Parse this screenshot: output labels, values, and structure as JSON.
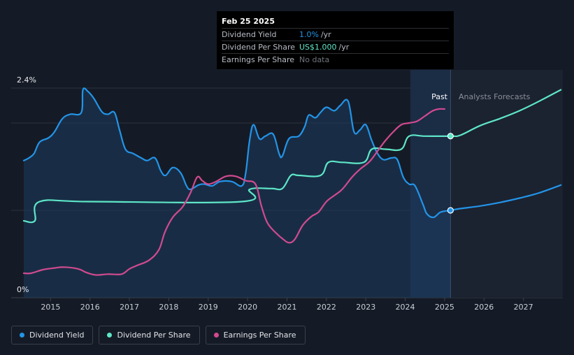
{
  "tooltip": {
    "date": "Feb 25 2025",
    "rows": [
      {
        "label": "Dividend Yield",
        "value": "1.0%",
        "unit": "/yr",
        "color": "#2394e8"
      },
      {
        "label": "Dividend Per Share",
        "value": "US$1.000",
        "unit": "/yr",
        "color": "#5ee6c8"
      },
      {
        "label": "Earnings Per Share",
        "value": "No data",
        "unit": "",
        "color": "#6f747c"
      }
    ]
  },
  "legend": [
    {
      "label": "Dividend Yield",
      "color": "#2394e8"
    },
    {
      "label": "Dividend Per Share",
      "color": "#5ee6c8"
    },
    {
      "label": "Earnings Per Share",
      "color": "#d14a8f"
    }
  ],
  "chart_data": {
    "type": "line",
    "y_top_label": "2.4%",
    "y_bottom_label": "0%",
    "ylim": [
      0,
      2.4
    ],
    "xlim": [
      2014.0,
      2028.0
    ],
    "x_ticks": [
      "2015",
      "2016",
      "2017",
      "2018",
      "2019",
      "2020",
      "2021",
      "2022",
      "2023",
      "2024",
      "2025",
      "2026",
      "2027"
    ],
    "past_label": "Past",
    "forecast_label": "Analysts Forecasts",
    "past_end": 2025.15,
    "shade_start": 2024.13,
    "series": [
      {
        "name": "Dividend Yield",
        "color": "#2394e8",
        "points": [
          [
            2014.32,
            1.57
          ],
          [
            2014.45,
            1.6
          ],
          [
            2014.58,
            1.65
          ],
          [
            2014.72,
            1.78
          ],
          [
            2014.95,
            1.83
          ],
          [
            2015.1,
            1.9
          ],
          [
            2015.3,
            2.05
          ],
          [
            2015.5,
            2.1
          ],
          [
            2015.78,
            2.12
          ],
          [
            2015.82,
            2.38
          ],
          [
            2015.95,
            2.36
          ],
          [
            2016.1,
            2.28
          ],
          [
            2016.3,
            2.13
          ],
          [
            2016.45,
            2.1
          ],
          [
            2016.62,
            2.12
          ],
          [
            2016.75,
            1.92
          ],
          [
            2016.9,
            1.7
          ],
          [
            2017.1,
            1.65
          ],
          [
            2017.3,
            1.6
          ],
          [
            2017.45,
            1.57
          ],
          [
            2017.65,
            1.6
          ],
          [
            2017.8,
            1.45
          ],
          [
            2017.92,
            1.4
          ],
          [
            2018.1,
            1.49
          ],
          [
            2018.3,
            1.43
          ],
          [
            2018.45,
            1.28
          ],
          [
            2018.55,
            1.24
          ],
          [
            2018.75,
            1.29
          ],
          [
            2018.9,
            1.3
          ],
          [
            2019.1,
            1.28
          ],
          [
            2019.3,
            1.33
          ],
          [
            2019.6,
            1.33
          ],
          [
            2019.85,
            1.28
          ],
          [
            2019.95,
            1.42
          ],
          [
            2020.05,
            1.8
          ],
          [
            2020.15,
            1.98
          ],
          [
            2020.3,
            1.82
          ],
          [
            2020.45,
            1.85
          ],
          [
            2020.65,
            1.87
          ],
          [
            2020.8,
            1.65
          ],
          [
            2020.88,
            1.62
          ],
          [
            2021.05,
            1.82
          ],
          [
            2021.3,
            1.85
          ],
          [
            2021.45,
            1.96
          ],
          [
            2021.55,
            2.09
          ],
          [
            2021.72,
            2.06
          ],
          [
            2021.85,
            2.12
          ],
          [
            2022.0,
            2.18
          ],
          [
            2022.2,
            2.14
          ],
          [
            2022.35,
            2.2
          ],
          [
            2022.55,
            2.25
          ],
          [
            2022.7,
            1.9
          ],
          [
            2022.85,
            1.92
          ],
          [
            2023.0,
            1.98
          ],
          [
            2023.15,
            1.8
          ],
          [
            2023.3,
            1.65
          ],
          [
            2023.45,
            1.58
          ],
          [
            2023.65,
            1.6
          ],
          [
            2023.8,
            1.58
          ],
          [
            2023.95,
            1.38
          ],
          [
            2024.1,
            1.3
          ],
          [
            2024.25,
            1.28
          ],
          [
            2024.45,
            1.07
          ],
          [
            2024.55,
            0.96
          ],
          [
            2024.72,
            0.92
          ],
          [
            2024.9,
            0.98
          ],
          [
            2025.15,
            1.0
          ],
          [
            2025.4,
            1.02
          ],
          [
            2025.9,
            1.05
          ],
          [
            2026.4,
            1.09
          ],
          [
            2026.9,
            1.14
          ],
          [
            2027.4,
            1.2
          ],
          [
            2027.95,
            1.29
          ]
        ]
      },
      {
        "name": "Dividend Per Share",
        "color": "#5ee6c8",
        "points": [
          [
            2014.32,
            0.88
          ],
          [
            2014.6,
            0.88
          ],
          [
            2014.72,
            1.1
          ],
          [
            2016.0,
            1.1
          ],
          [
            2019.85,
            1.1
          ],
          [
            2020.05,
            1.24
          ],
          [
            2020.6,
            1.25
          ],
          [
            2020.88,
            1.25
          ],
          [
            2021.1,
            1.4
          ],
          [
            2021.3,
            1.4
          ],
          [
            2021.85,
            1.4
          ],
          [
            2022.05,
            1.55
          ],
          [
            2022.4,
            1.55
          ],
          [
            2022.95,
            1.55
          ],
          [
            2023.15,
            1.7
          ],
          [
            2023.5,
            1.7
          ],
          [
            2023.9,
            1.7
          ],
          [
            2024.1,
            1.85
          ],
          [
            2024.5,
            1.85
          ],
          [
            2025.15,
            1.85
          ],
          [
            2025.4,
            1.86
          ],
          [
            2025.9,
            1.97
          ],
          [
            2026.4,
            2.05
          ],
          [
            2026.9,
            2.14
          ],
          [
            2027.4,
            2.25
          ],
          [
            2027.95,
            2.38
          ]
        ]
      },
      {
        "name": "Earnings Per Share",
        "color": "#d14a8f",
        "points": [
          [
            2014.32,
            0.28
          ],
          [
            2014.5,
            0.28
          ],
          [
            2014.8,
            0.32
          ],
          [
            2015.1,
            0.34
          ],
          [
            2015.35,
            0.35
          ],
          [
            2015.7,
            0.33
          ],
          [
            2015.9,
            0.29
          ],
          [
            2016.15,
            0.26
          ],
          [
            2016.45,
            0.27
          ],
          [
            2016.8,
            0.27
          ],
          [
            2017.0,
            0.33
          ],
          [
            2017.2,
            0.37
          ],
          [
            2017.5,
            0.43
          ],
          [
            2017.75,
            0.55
          ],
          [
            2017.9,
            0.75
          ],
          [
            2018.1,
            0.92
          ],
          [
            2018.35,
            1.04
          ],
          [
            2018.55,
            1.2
          ],
          [
            2018.72,
            1.38
          ],
          [
            2018.85,
            1.34
          ],
          [
            2019.0,
            1.3
          ],
          [
            2019.2,
            1.33
          ],
          [
            2019.45,
            1.39
          ],
          [
            2019.7,
            1.39
          ],
          [
            2019.95,
            1.34
          ],
          [
            2020.2,
            1.3
          ],
          [
            2020.35,
            1.05
          ],
          [
            2020.5,
            0.86
          ],
          [
            2020.7,
            0.75
          ],
          [
            2020.9,
            0.67
          ],
          [
            2021.05,
            0.63
          ],
          [
            2021.2,
            0.67
          ],
          [
            2021.4,
            0.83
          ],
          [
            2021.62,
            0.93
          ],
          [
            2021.8,
            0.98
          ],
          [
            2022.0,
            1.1
          ],
          [
            2022.2,
            1.17
          ],
          [
            2022.4,
            1.24
          ],
          [
            2022.65,
            1.38
          ],
          [
            2022.85,
            1.47
          ],
          [
            2023.1,
            1.56
          ],
          [
            2023.3,
            1.68
          ],
          [
            2023.5,
            1.8
          ],
          [
            2023.7,
            1.9
          ],
          [
            2023.9,
            1.98
          ],
          [
            2024.1,
            2.0
          ],
          [
            2024.3,
            2.02
          ],
          [
            2024.5,
            2.08
          ],
          [
            2024.7,
            2.14
          ],
          [
            2024.85,
            2.16
          ],
          [
            2025.0,
            2.16
          ]
        ]
      }
    ],
    "markers": [
      {
        "series": "Dividend Yield",
        "x": 2025.15,
        "y": 1.0
      },
      {
        "series": "Dividend Per Share",
        "x": 2025.15,
        "y": 1.85
      }
    ]
  }
}
